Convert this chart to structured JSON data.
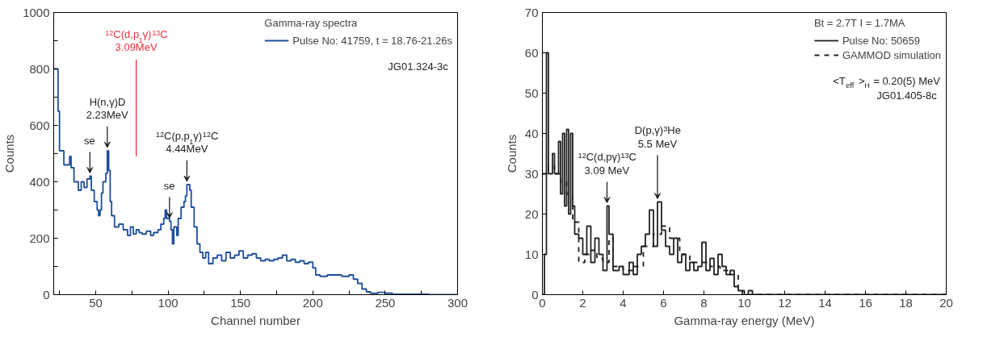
{
  "chart_data": [
    {
      "type": "step",
      "xlabel": "Channel number",
      "ylabel": "Counts",
      "legend_title": "Gamma-ray spectra",
      "legend": "top right",
      "grid": false,
      "xlim": [
        21,
        300
      ],
      "ylim": [
        0,
        1000
      ],
      "xticks": [
        {
          "value": 25,
          "label": null
        },
        50,
        {
          "value": 75,
          "label": null
        },
        100,
        {
          "value": 125,
          "label": null
        },
        150,
        {
          "value": 175,
          "label": null
        },
        200,
        {
          "value": 225,
          "label": null
        },
        250,
        {
          "value": 275,
          "label": null
        },
        300
      ],
      "yticks": [
        0,
        {
          "value": 100,
          "label": null
        },
        200,
        {
          "value": 300,
          "label": null
        },
        400,
        {
          "value": 500,
          "label": null
        },
        600,
        {
          "value": 700,
          "label": null
        },
        800,
        {
          "value": 900,
          "label": null
        },
        1000
      ],
      "series": [
        {
          "name": "Pulse No: 41759, t = 18.76-21.26s",
          "color": "#1f4e9c",
          "line_style": "solid",
          "x": [
            21,
            23,
            24,
            25,
            27,
            28,
            31,
            32,
            33,
            35,
            37,
            38,
            40,
            42,
            44,
            46,
            47,
            49,
            51,
            52,
            53,
            54,
            55,
            57,
            58,
            59,
            60,
            61,
            63,
            66,
            69,
            72,
            74,
            76,
            78,
            80,
            82,
            85,
            88,
            90,
            93,
            95,
            97,
            98,
            99,
            101,
            102,
            103,
            104,
            106,
            107,
            109,
            111,
            112,
            113,
            115,
            116,
            118,
            120,
            122,
            124,
            126,
            128,
            131,
            134,
            137,
            140,
            143,
            146,
            149,
            152,
            155,
            158,
            161,
            164,
            167,
            170,
            173,
            176,
            179,
            182,
            185,
            188,
            191,
            194,
            197,
            200,
            202,
            205,
            210,
            215,
            220,
            225,
            228,
            231,
            234,
            237,
            240,
            245,
            250,
            255,
            260,
            280,
            300
          ],
          "values": [
            800,
            800,
            650,
            510,
            510,
            460,
            460,
            490,
            450,
            400,
            400,
            370,
            400,
            380,
            410,
            420,
            370,
            330,
            300,
            280,
            300,
            360,
            400,
            430,
            510,
            440,
            330,
            280,
            240,
            250,
            230,
            210,
            240,
            215,
            230,
            220,
            215,
            225,
            210,
            220,
            230,
            250,
            270,
            300,
            270,
            260,
            230,
            180,
            240,
            210,
            270,
            310,
            330,
            350,
            390,
            370,
            310,
            240,
            180,
            150,
            130,
            150,
            110,
            130,
            140,
            120,
            150,
            130,
            140,
            155,
            130,
            140,
            145,
            130,
            120,
            125,
            120,
            125,
            130,
            140,
            120,
            125,
            115,
            120,
            110,
            115,
            95,
            70,
            65,
            70,
            70,
            65,
            70,
            55,
            40,
            20,
            10,
            5,
            8,
            5,
            2,
            2,
            0,
            0
          ]
        }
      ],
      "annotations": [
        {
          "text": "se",
          "x": 46,
          "y": 420
        },
        {
          "text": "H(n,γ)D\n2.23MeV",
          "x": 58,
          "y": 510
        },
        {
          "text": "se",
          "x": 101,
          "y": 260
        },
        {
          "text": "$^{12}$C(p,p$_{1}$γ)$^{12}$C\n4.44MeV",
          "x": 113,
          "y": 390
        },
        "JG01.324-3c"
      ],
      "ref_lines": [
        {
          "axis": "x",
          "value": 78,
          "label": "$^{12}$C(d,p$_{1}$γ)$^{13}$C\n3.09MeV",
          "color": "#e8323c"
        }
      ]
    },
    {
      "type": "step",
      "xlabel": "Gamma-ray energy (MeV)",
      "ylabel": "Counts",
      "legend_title": "Bt = 2.7T I = 1.7MA",
      "legend": "top right",
      "grid": false,
      "xlim": [
        0,
        20
      ],
      "ylim": [
        0,
        70
      ],
      "xticks": [
        0,
        2,
        4,
        6,
        8,
        10,
        12,
        14,
        16,
        18,
        20
      ],
      "yticks": [
        0,
        10,
        20,
        30,
        40,
        50,
        60,
        70
      ],
      "series": [
        {
          "name": "Pulse No: 50659",
          "color": "#222222",
          "line_style": "solid",
          "x": [
            0,
            0.1,
            0.2,
            0.3,
            0.5,
            0.6,
            0.8,
            0.9,
            1.0,
            1.1,
            1.2,
            1.3,
            1.4,
            1.5,
            1.6,
            1.8,
            2.0,
            2.2,
            2.4,
            2.6,
            2.8,
            3.0,
            3.2,
            3.3,
            3.5,
            3.8,
            4.0,
            4.3,
            4.5,
            4.7,
            4.9,
            5.1,
            5.3,
            5.5,
            5.7,
            5.9,
            6.1,
            6.3,
            6.5,
            6.7,
            6.9,
            7.1,
            7.3,
            7.5,
            7.7,
            7.9,
            8.1,
            8.3,
            8.5,
            8.7,
            8.9,
            9.1,
            9.3,
            9.5,
            9.7,
            9.9,
            10.2,
            10.4,
            20
          ],
          "values": [
            0,
            10,
            60,
            30,
            35,
            30,
            38,
            25,
            40,
            22,
            41,
            20,
            40,
            22,
            15,
            14,
            10,
            17,
            8,
            14,
            10,
            6,
            22,
            15,
            6,
            7,
            5,
            8,
            5,
            10,
            12,
            15,
            21,
            12,
            23,
            16,
            12,
            10,
            14,
            8,
            10,
            6,
            8,
            6,
            7,
            13,
            6,
            9,
            5,
            10,
            7,
            5,
            6,
            2,
            1,
            0,
            1,
            0,
            0
          ]
        },
        {
          "name": "GAMMOD simulation",
          "color": "#222222",
          "line_style": "dashed",
          "x": [
            0,
            0.3,
            0.6,
            0.9,
            1.2,
            1.5,
            1.8,
            2.1,
            2.4,
            2.7,
            3.0,
            3.3,
            3.5,
            4.0,
            4.5,
            5.0,
            5.5,
            5.9,
            6.3,
            6.8,
            7.3,
            7.8,
            8.3,
            8.8,
            9.3,
            9.7,
            10,
            20
          ],
          "values": [
            30,
            32,
            30,
            28,
            25,
            18,
            8,
            10,
            11,
            9,
            8,
            14,
            7,
            6,
            7,
            12,
            15,
            17,
            14,
            10,
            8,
            8,
            7,
            6,
            5,
            1,
            0,
            0
          ]
        }
      ],
      "annotations": [
        {
          "text": "$^{12}$C(d,pγ)$^{13}$C\n3.09 MeV",
          "x": 3.2,
          "y": 22
        },
        {
          "text": "D(p,γ)$^{3}$He\n5.5 MeV",
          "x": 5.7,
          "y": 23
        },
        "<T$_{eff}$ >$_{H}$ = 0.20(5) MeV",
        "JG01.405-8c"
      ]
    }
  ]
}
